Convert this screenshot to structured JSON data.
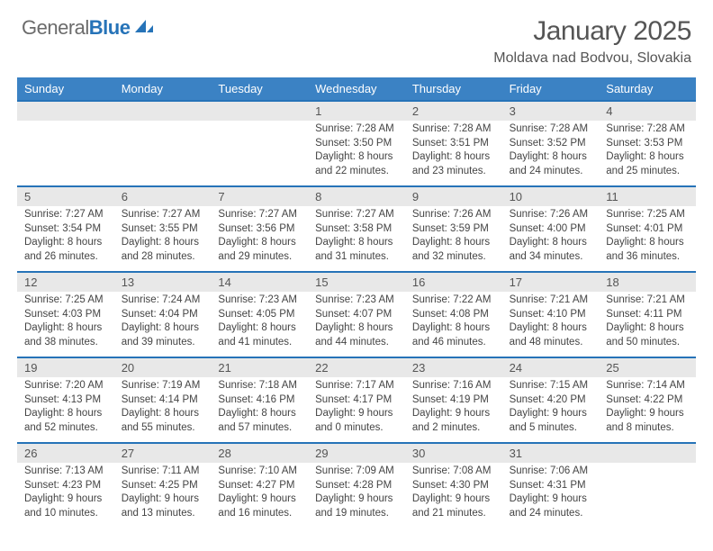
{
  "logo": {
    "text_general": "General",
    "text_blue": "Blue"
  },
  "title": "January 2025",
  "subtitle": "Moldava nad Bodvou, Slovakia",
  "colors": {
    "header_bg": "#3b82c4",
    "header_text": "#ffffff",
    "daynum_bg": "#e8e8e8",
    "week_border": "#2673b8",
    "body_text": "#444444",
    "logo_gray": "#6b6b6b",
    "logo_blue": "#2673b8"
  },
  "day_headers": [
    "Sunday",
    "Monday",
    "Tuesday",
    "Wednesday",
    "Thursday",
    "Friday",
    "Saturday"
  ],
  "weeks": [
    {
      "days": [
        null,
        null,
        null,
        {
          "num": "1",
          "sunrise": "Sunrise: 7:28 AM",
          "sunset": "Sunset: 3:50 PM",
          "day1": "Daylight: 8 hours",
          "day2": "and 22 minutes."
        },
        {
          "num": "2",
          "sunrise": "Sunrise: 7:28 AM",
          "sunset": "Sunset: 3:51 PM",
          "day1": "Daylight: 8 hours",
          "day2": "and 23 minutes."
        },
        {
          "num": "3",
          "sunrise": "Sunrise: 7:28 AM",
          "sunset": "Sunset: 3:52 PM",
          "day1": "Daylight: 8 hours",
          "day2": "and 24 minutes."
        },
        {
          "num": "4",
          "sunrise": "Sunrise: 7:28 AM",
          "sunset": "Sunset: 3:53 PM",
          "day1": "Daylight: 8 hours",
          "day2": "and 25 minutes."
        }
      ]
    },
    {
      "days": [
        {
          "num": "5",
          "sunrise": "Sunrise: 7:27 AM",
          "sunset": "Sunset: 3:54 PM",
          "day1": "Daylight: 8 hours",
          "day2": "and 26 minutes."
        },
        {
          "num": "6",
          "sunrise": "Sunrise: 7:27 AM",
          "sunset": "Sunset: 3:55 PM",
          "day1": "Daylight: 8 hours",
          "day2": "and 28 minutes."
        },
        {
          "num": "7",
          "sunrise": "Sunrise: 7:27 AM",
          "sunset": "Sunset: 3:56 PM",
          "day1": "Daylight: 8 hours",
          "day2": "and 29 minutes."
        },
        {
          "num": "8",
          "sunrise": "Sunrise: 7:27 AM",
          "sunset": "Sunset: 3:58 PM",
          "day1": "Daylight: 8 hours",
          "day2": "and 31 minutes."
        },
        {
          "num": "9",
          "sunrise": "Sunrise: 7:26 AM",
          "sunset": "Sunset: 3:59 PM",
          "day1": "Daylight: 8 hours",
          "day2": "and 32 minutes."
        },
        {
          "num": "10",
          "sunrise": "Sunrise: 7:26 AM",
          "sunset": "Sunset: 4:00 PM",
          "day1": "Daylight: 8 hours",
          "day2": "and 34 minutes."
        },
        {
          "num": "11",
          "sunrise": "Sunrise: 7:25 AM",
          "sunset": "Sunset: 4:01 PM",
          "day1": "Daylight: 8 hours",
          "day2": "and 36 minutes."
        }
      ]
    },
    {
      "days": [
        {
          "num": "12",
          "sunrise": "Sunrise: 7:25 AM",
          "sunset": "Sunset: 4:03 PM",
          "day1": "Daylight: 8 hours",
          "day2": "and 38 minutes."
        },
        {
          "num": "13",
          "sunrise": "Sunrise: 7:24 AM",
          "sunset": "Sunset: 4:04 PM",
          "day1": "Daylight: 8 hours",
          "day2": "and 39 minutes."
        },
        {
          "num": "14",
          "sunrise": "Sunrise: 7:23 AM",
          "sunset": "Sunset: 4:05 PM",
          "day1": "Daylight: 8 hours",
          "day2": "and 41 minutes."
        },
        {
          "num": "15",
          "sunrise": "Sunrise: 7:23 AM",
          "sunset": "Sunset: 4:07 PM",
          "day1": "Daylight: 8 hours",
          "day2": "and 44 minutes."
        },
        {
          "num": "16",
          "sunrise": "Sunrise: 7:22 AM",
          "sunset": "Sunset: 4:08 PM",
          "day1": "Daylight: 8 hours",
          "day2": "and 46 minutes."
        },
        {
          "num": "17",
          "sunrise": "Sunrise: 7:21 AM",
          "sunset": "Sunset: 4:10 PM",
          "day1": "Daylight: 8 hours",
          "day2": "and 48 minutes."
        },
        {
          "num": "18",
          "sunrise": "Sunrise: 7:21 AM",
          "sunset": "Sunset: 4:11 PM",
          "day1": "Daylight: 8 hours",
          "day2": "and 50 minutes."
        }
      ]
    },
    {
      "days": [
        {
          "num": "19",
          "sunrise": "Sunrise: 7:20 AM",
          "sunset": "Sunset: 4:13 PM",
          "day1": "Daylight: 8 hours",
          "day2": "and 52 minutes."
        },
        {
          "num": "20",
          "sunrise": "Sunrise: 7:19 AM",
          "sunset": "Sunset: 4:14 PM",
          "day1": "Daylight: 8 hours",
          "day2": "and 55 minutes."
        },
        {
          "num": "21",
          "sunrise": "Sunrise: 7:18 AM",
          "sunset": "Sunset: 4:16 PM",
          "day1": "Daylight: 8 hours",
          "day2": "and 57 minutes."
        },
        {
          "num": "22",
          "sunrise": "Sunrise: 7:17 AM",
          "sunset": "Sunset: 4:17 PM",
          "day1": "Daylight: 9 hours",
          "day2": "and 0 minutes."
        },
        {
          "num": "23",
          "sunrise": "Sunrise: 7:16 AM",
          "sunset": "Sunset: 4:19 PM",
          "day1": "Daylight: 9 hours",
          "day2": "and 2 minutes."
        },
        {
          "num": "24",
          "sunrise": "Sunrise: 7:15 AM",
          "sunset": "Sunset: 4:20 PM",
          "day1": "Daylight: 9 hours",
          "day2": "and 5 minutes."
        },
        {
          "num": "25",
          "sunrise": "Sunrise: 7:14 AM",
          "sunset": "Sunset: 4:22 PM",
          "day1": "Daylight: 9 hours",
          "day2": "and 8 minutes."
        }
      ]
    },
    {
      "days": [
        {
          "num": "26",
          "sunrise": "Sunrise: 7:13 AM",
          "sunset": "Sunset: 4:23 PM",
          "day1": "Daylight: 9 hours",
          "day2": "and 10 minutes."
        },
        {
          "num": "27",
          "sunrise": "Sunrise: 7:11 AM",
          "sunset": "Sunset: 4:25 PM",
          "day1": "Daylight: 9 hours",
          "day2": "and 13 minutes."
        },
        {
          "num": "28",
          "sunrise": "Sunrise: 7:10 AM",
          "sunset": "Sunset: 4:27 PM",
          "day1": "Daylight: 9 hours",
          "day2": "and 16 minutes."
        },
        {
          "num": "29",
          "sunrise": "Sunrise: 7:09 AM",
          "sunset": "Sunset: 4:28 PM",
          "day1": "Daylight: 9 hours",
          "day2": "and 19 minutes."
        },
        {
          "num": "30",
          "sunrise": "Sunrise: 7:08 AM",
          "sunset": "Sunset: 4:30 PM",
          "day1": "Daylight: 9 hours",
          "day2": "and 21 minutes."
        },
        {
          "num": "31",
          "sunrise": "Sunrise: 7:06 AM",
          "sunset": "Sunset: 4:31 PM",
          "day1": "Daylight: 9 hours",
          "day2": "and 24 minutes."
        },
        null
      ]
    }
  ]
}
